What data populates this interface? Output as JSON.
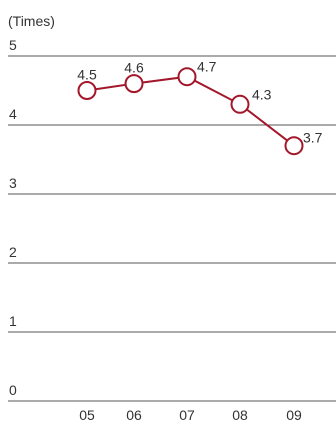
{
  "chart_data": {
    "type": "line",
    "title": "",
    "unit_label": "(Times)",
    "xlabel": "",
    "ylabel": "",
    "categories": [
      "05",
      "06",
      "07",
      "08",
      "09"
    ],
    "series": [
      {
        "values": [
          4.5,
          4.6,
          4.7,
          4.3,
          3.7
        ],
        "color": "#a3172a",
        "marker": "open-circle"
      }
    ],
    "y_ticks": [
      "0",
      "1",
      "2",
      "3",
      "4",
      "5"
    ],
    "ylim": [
      0,
      5
    ],
    "grid": true,
    "legend": "none"
  }
}
